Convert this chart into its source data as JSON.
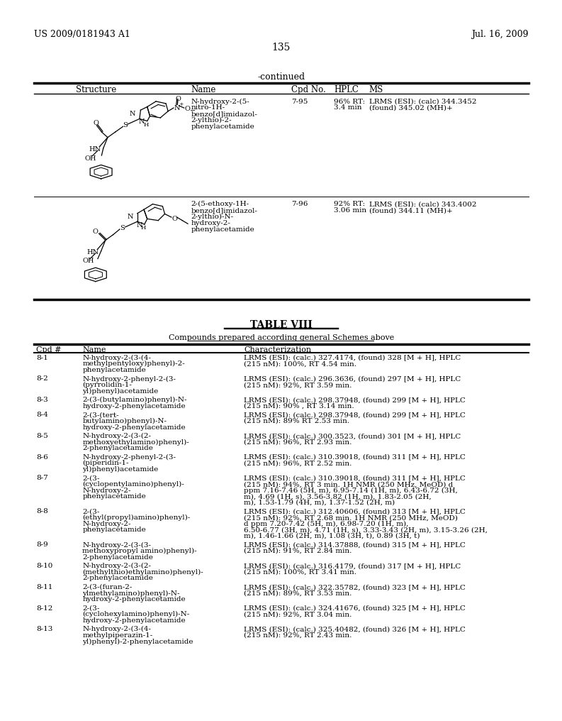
{
  "header_left": "US 2009/0181943 A1",
  "header_right": "Jul. 16, 2009",
  "page_number": "135",
  "continued_label": "-continued",
  "bg_color": "#ffffff",
  "text_color": "#000000",
  "table1_col_headers": [
    "Structure",
    "Name",
    "Cpd No.",
    "HPLC",
    "MS"
  ],
  "row1_name": [
    "N-hydroxy-2-(5-",
    "nitro-1H-",
    "benzo[d]imidazol-",
    "2-ylthio)-2-",
    "phenylacetamide"
  ],
  "row1_cpd": "7-95",
  "row1_hplc": [
    "96% RT:",
    "3.4 min"
  ],
  "row1_ms": [
    "LRMS (ESI): (calc) 344.3452",
    "(found) 345.02 (MH)+"
  ],
  "row2_name": [
    "2-(5-ethoxy-1H-",
    "benzo[d]imidazol-",
    "2-ylthio)-N-",
    "hydroxy-2-",
    "phenylacetamide"
  ],
  "row2_cpd": "7-96",
  "row2_hplc": [
    "92% RT:",
    "3.06 min"
  ],
  "row2_ms": [
    "LRMS (ESI): (calc) 343.4002",
    "(found) 344.11 (MH)+"
  ],
  "table2_title": "TABLE VIII",
  "table2_subtitle": "Compounds prepared according general Schemes above",
  "table2_col_headers": [
    "Cpd #",
    "Name",
    "Characterization"
  ],
  "table2_rows": [
    [
      "8-1",
      [
        "N-hydroxy-2-(3-(4-",
        "methylpentyloxy)phenyl)-2-",
        "phenylacetamide"
      ],
      [
        "LRMS (ESI): (calc.) 327.4174, (found) 328 [M + H], HPLC",
        "(215 nM): 100%, RT 4.54 min."
      ]
    ],
    [
      "8-2",
      [
        "N-hydroxy-2-phenyl-2-(3-",
        "(pyrrolidin-1-",
        "yl)phenyl)acetamide"
      ],
      [
        "LRMS (ESI): (calc.) 296.3636, (found) 297 [M + H], HPLC",
        "(215 nM): 92%, RT 3.59 min."
      ]
    ],
    [
      "8-3",
      [
        "2-(3-(butylamino)phenyl)-N-",
        "hydroxy-2-phenylacetamide"
      ],
      [
        "LRMS (ESI): (calc.) 298.37948, (found) 299 [M + H], HPLC",
        "(215 nM): 90% , RT 3.14 min."
      ]
    ],
    [
      "8-4",
      [
        "2-(3-(tert-",
        "butylamino)phenyl)-N-",
        "hydroxy-2-phenylacetamide"
      ],
      [
        "LRMS (ESI): (calc.) 298.37948, (found) 299 [M + H], HPLC",
        "(215 nM): 89% RT 2.53 min."
      ]
    ],
    [
      "8-5",
      [
        "N-hydroxy-2-(3-(2-",
        "methoxyethylamino)phenyl)-",
        "2-phenylacetamide"
      ],
      [
        "LRMS (ESI): (calc.) 300.3523, (found) 301 [M + H], HPLC",
        "(215 nM): 96%, RT 2.93 min."
      ]
    ],
    [
      "8-6",
      [
        "N-hydroxy-2-phenyl-2-(3-",
        "(piperidin-1-",
        "yl)phenyl)acetamide"
      ],
      [
        "LRMS (ESI): (calc.) 310.39018, (found) 311 [M + H], HPLC",
        "(215 nM): 96%, RT 2.52 min."
      ]
    ],
    [
      "8-7",
      [
        "2-(3-",
        "(cyclopentylamino)phenyl)-",
        "N-hydroxy-2-",
        "phenylacetamide"
      ],
      [
        "LRMS (ESI): (calc.) 310.39018, (found) 311 [M + H], HPLC",
        "(215 nM): 94%, RT 3 min. 1H NMR (250 MHz, MeOD) d",
        "ppm 7.16-7.46 (5H, m), 6.95-7.14 (1H, m), 6.43-6.72 (3H,",
        "m), 4.69 (1H, s), 3.56-3.82 (1H, m), 1.83-2.05 (2H,",
        "m), 1.53-1.79 (4H, m), 1.37-1.52 (2H, m)"
      ]
    ],
    [
      "8-8",
      [
        "2-(3-",
        "(ethyl(propyl)amino)phenyl)-",
        "N-hydroxy-2-",
        "phenylacetamide"
      ],
      [
        "LRMS (ESI): (calc.) 312.40606, (found) 313 [M + H], HPLC",
        "(215 nM): 92%, RT 2.68 min. 1H NMR (250 MHz, MeOD)",
        "d ppm 7.20-7.42 (5H, m), 6.98-7.20 (1H, m),",
        "6.50-6.77 (3H, m), 4.71 (1H, s), 3.33-3.43 (2H, m), 3.15-3.26 (2H,",
        "m), 1.46-1.66 (2H, m), 1.08 (3H, t), 0.89 (3H, t)"
      ]
    ],
    [
      "8-9",
      [
        "N-hydroxy-2-(3-(3-",
        "methoxypropyl amino)phenyl)-",
        "2-phenylacetamide"
      ],
      [
        "LRMS (ESI): (calc.) 314.37888, (found) 315 [M + H], HPLC",
        "(215 nM): 91%, RT 2.84 min."
      ]
    ],
    [
      "8-10",
      [
        "N-hydroxy-2-(3-(2-",
        "(methylthio)ethylamino)phenyl)-",
        "2-phenylacetamide"
      ],
      [
        "LRMS (ESI): (calc.) 316.4179, (found) 317 [M + H], HPLC",
        "(215 nM): 100%, RT 3.41 min."
      ]
    ],
    [
      "8-11",
      [
        "2-(3-(furan-2-",
        "ylmethylamino)phenyl)-N-",
        "hydroxy-2-phenylacetamide"
      ],
      [
        "LRMS (ESI): (calc.) 322.35782, (found) 323 [M + H], HPLC",
        "(215 nM): 89%, RT 3.53 min."
      ]
    ],
    [
      "8-12",
      [
        "2-(3-",
        "(cyclohexylamino)phenyl)-N-",
        "hydroxy-2-phenylacetamide"
      ],
      [
        "LRMS (ESI): (calc.) 324.41676, (found) 325 [M + H], HPLC",
        "(215 nM): 92%, RT 3.04 min."
      ]
    ],
    [
      "8-13",
      [
        "N-hydroxy-2-(3-(4-",
        "methylpiperazin-1-",
        "yl)phenyl)-2-phenylacetamide"
      ],
      [
        "LRMS (ESI): (calc.) 325.40482, (found) 326 [M + H], HPLC",
        "(215 nM): 92%, RT 2.43 min."
      ]
    ]
  ]
}
